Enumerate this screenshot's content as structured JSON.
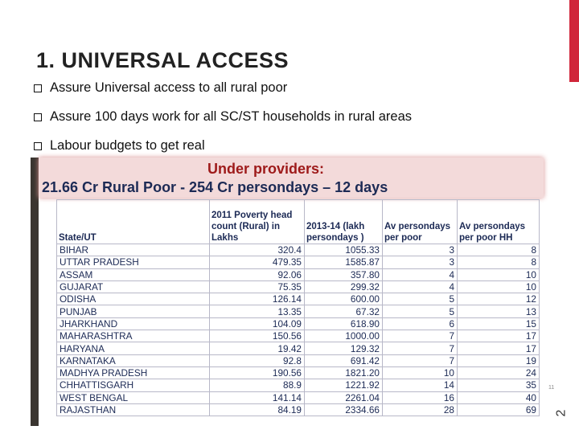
{
  "title": "1. UNIVERSAL ACCESS",
  "bullets": [
    "Assure Universal access to all rural poor",
    "Assure 100 days work for all SC/ST households in rural areas",
    "Labour budgets to get real"
  ],
  "image": {
    "heading": "Under providers:",
    "subheading": "21.66 Cr Rural Poor - 254 Cr persondays – 12 days",
    "table": {
      "header": [
        "State/UT",
        "2011 Poverty head count (Rural) in Lakhs",
        "2013-14 (lakh persondays )",
        "Av persondays per poor",
        "Av persondays per poor HH"
      ],
      "rows": [
        [
          "BIHAR",
          "320.4",
          "1055.33",
          "3",
          "8"
        ],
        [
          "UTTAR PRADESH",
          "479.35",
          "1585.87",
          "3",
          "8"
        ],
        [
          "ASSAM",
          "92.06",
          "357.80",
          "4",
          "10"
        ],
        [
          "GUJARAT",
          "75.35",
          "299.32",
          "4",
          "10"
        ],
        [
          "ODISHA",
          "126.14",
          "600.00",
          "5",
          "12"
        ],
        [
          "PUNJAB",
          "13.35",
          "67.32",
          "5",
          "13"
        ],
        [
          "JHARKHAND",
          "104.09",
          "618.90",
          "6",
          "15"
        ],
        [
          "MAHARASHTRA",
          "150.56",
          "1000.00",
          "7",
          "17"
        ],
        [
          "HARYANA",
          "19.42",
          "129.32",
          "7",
          "17"
        ],
        [
          "KARNATAKA",
          "92.8",
          "691.42",
          "7",
          "19"
        ],
        [
          "MADHYA PRADESH",
          "190.56",
          "1821.20",
          "10",
          "24"
        ],
        [
          "CHHATTISGARH",
          "88.9",
          "1221.92",
          "14",
          "35"
        ],
        [
          "WEST BENGAL",
          "141.14",
          "2261.04",
          "16",
          "40"
        ],
        [
          "RAJASTHAN",
          "84.19",
          "2334.66",
          "28",
          "69"
        ]
      ]
    },
    "corner_number": "11"
  },
  "page_number": "2"
}
